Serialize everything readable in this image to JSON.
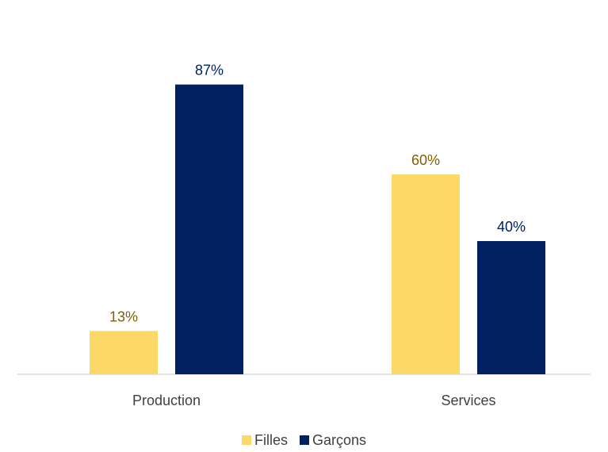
{
  "chart_data": {
    "type": "bar",
    "categories": [
      "Production",
      "Services"
    ],
    "series": [
      {
        "name": "Filles",
        "values": [
          13,
          60
        ],
        "labels": [
          "13%",
          "60%"
        ],
        "color": "#FCD966",
        "label_color": "#7F6000"
      },
      {
        "name": "Garçons",
        "values": [
          87,
          40
        ],
        "labels": [
          "87%",
          "40%"
        ],
        "color": "#002060",
        "label_color": "#002060"
      }
    ],
    "ylim": [
      0,
      100
    ],
    "grid": false,
    "legend_position": "bottom",
    "title": "",
    "xlabel": "",
    "ylabel": ""
  }
}
